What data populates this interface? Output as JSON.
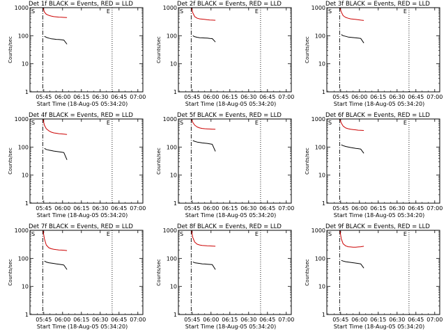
{
  "figure": {
    "colors": {
      "events": "#000000",
      "lld": "#cc0000",
      "axes": "#000000"
    }
  },
  "chart_data": [
    {
      "type": "line",
      "title": "Det 1f BLACK = Events, RED = LLD",
      "xlabel": "Start Time (18-Aug-05 05:34:20)",
      "ylabel": "Counts/sec",
      "x_tick_labels": [
        "05:45",
        "06:00",
        "06:15",
        "06:30",
        "06:45",
        "07:00"
      ],
      "y_tick_labels": [
        "1",
        "10",
        "100",
        "1000"
      ],
      "yscale": "log",
      "ylim": [
        1,
        1000
      ],
      "xlim_minutes": [
        0,
        90
      ],
      "grid": false,
      "s_marker_label": "S",
      "e_marker_label": "E",
      "s_marker_min": 10.2,
      "e_marker_min": 65.5,
      "series": [
        {
          "name": "Events",
          "color": "#000000",
          "x_min": [
            11.5,
            13,
            15,
            17,
            19,
            21,
            23,
            25,
            27,
            29.5
          ],
          "y": [
            95,
            88,
            82,
            78,
            76,
            74,
            73,
            72,
            70,
            50
          ]
        },
        {
          "name": "LLD",
          "color": "#cc0000",
          "x_min": [
            10.5,
            11.5,
            13,
            15,
            17,
            19,
            21,
            23,
            25,
            27,
            29.5
          ],
          "y": [
            950,
            700,
            580,
            530,
            500,
            480,
            470,
            460,
            455,
            450,
            445
          ]
        }
      ]
    },
    {
      "type": "line",
      "title": "Det 2f BLACK = Events, RED = LLD",
      "xlabel": "Start Time (18-Aug-05 05:34:20)",
      "ylabel": "Counts/sec",
      "x_tick_labels": [
        "05:45",
        "06:00",
        "06:15",
        "06:30",
        "06:45",
        "07:00"
      ],
      "y_tick_labels": [
        "1",
        "10",
        "100",
        "1000"
      ],
      "yscale": "log",
      "ylim": [
        1,
        1000
      ],
      "xlim_minutes": [
        0,
        90
      ],
      "grid": false,
      "s_marker_label": "S",
      "e_marker_label": "E",
      "s_marker_min": 10.2,
      "e_marker_min": 65.5,
      "series": [
        {
          "name": "Events",
          "color": "#000000",
          "x_min": [
            11.5,
            13,
            15,
            17,
            19,
            21,
            23,
            25,
            27,
            29.5
          ],
          "y": [
            100,
            92,
            88,
            85,
            84,
            83,
            82,
            80,
            79,
            60
          ]
        },
        {
          "name": "LLD",
          "color": "#cc0000",
          "x_min": [
            10.5,
            11.5,
            13,
            15,
            17,
            19,
            21,
            23,
            25,
            27,
            29.5
          ],
          "y": [
            950,
            650,
            480,
            420,
            400,
            390,
            380,
            370,
            365,
            360,
            355
          ]
        }
      ]
    },
    {
      "type": "line",
      "title": "Det 3f BLACK = Events, RED = LLD",
      "xlabel": "Start Time (18-Aug-05 05:34:20)",
      "ylabel": "Counts/sec",
      "x_tick_labels": [
        "05:45",
        "06:00",
        "06:15",
        "06:30",
        "06:45",
        "07:00"
      ],
      "y_tick_labels": [
        "1",
        "10",
        "100",
        "1000"
      ],
      "yscale": "log",
      "ylim": [
        1,
        1000
      ],
      "xlim_minutes": [
        0,
        90
      ],
      "grid": false,
      "s_marker_label": "S",
      "e_marker_label": "E",
      "s_marker_min": 10.2,
      "e_marker_min": 65.5,
      "series": [
        {
          "name": "Events",
          "color": "#000000",
          "x_min": [
            11.5,
            13,
            15,
            17,
            19,
            21,
            23,
            25,
            27,
            29.5
          ],
          "y": [
            110,
            100,
            95,
            90,
            88,
            86,
            84,
            82,
            80,
            55
          ]
        },
        {
          "name": "LLD",
          "color": "#cc0000",
          "x_min": [
            10.5,
            11.5,
            13,
            15,
            17,
            19,
            21,
            23,
            25,
            27,
            29.5
          ],
          "y": [
            950,
            700,
            520,
            450,
            420,
            400,
            390,
            380,
            370,
            360,
            350
          ]
        }
      ]
    },
    {
      "type": "line",
      "title": "Det 4f BLACK = Events, RED = LLD",
      "xlabel": "Start Time (18-Aug-05 05:34:20)",
      "ylabel": "Counts/sec",
      "x_tick_labels": [
        "05:45",
        "06:00",
        "06:15",
        "06:30",
        "06:45",
        "07:00"
      ],
      "y_tick_labels": [
        "1",
        "10",
        "100",
        "1000"
      ],
      "yscale": "log",
      "ylim": [
        1,
        1000
      ],
      "xlim_minutes": [
        0,
        90
      ],
      "grid": false,
      "s_marker_label": "S",
      "e_marker_label": "E",
      "s_marker_min": 10.2,
      "e_marker_min": 65.5,
      "series": [
        {
          "name": "Events",
          "color": "#000000",
          "x_min": [
            11.5,
            13,
            15,
            17,
            19,
            21,
            23,
            25,
            27,
            29.5
          ],
          "y": [
            90,
            82,
            78,
            75,
            72,
            70,
            68,
            66,
            64,
            35
          ]
        },
        {
          "name": "LLD",
          "color": "#cc0000",
          "x_min": [
            10.5,
            11.5,
            13,
            15,
            17,
            19,
            21,
            23,
            25,
            27,
            29.5
          ],
          "y": [
            950,
            600,
            450,
            380,
            340,
            320,
            310,
            300,
            295,
            290,
            280
          ]
        }
      ]
    },
    {
      "type": "line",
      "title": "Det 5f BLACK = Events, RED = LLD",
      "xlabel": "Start Time (18-Aug-05 05:34:20)",
      "ylabel": "Counts/sec",
      "x_tick_labels": [
        "05:45",
        "06:00",
        "06:15",
        "06:30",
        "06:45",
        "07:00"
      ],
      "y_tick_labels": [
        "1",
        "10",
        "100",
        "1000"
      ],
      "yscale": "log",
      "ylim": [
        1,
        1000
      ],
      "xlim_minutes": [
        0,
        90
      ],
      "grid": false,
      "s_marker_label": "S",
      "e_marker_label": "E",
      "s_marker_min": 10.2,
      "e_marker_min": 65.5,
      "series": [
        {
          "name": "Events",
          "color": "#000000",
          "x_min": [
            11.5,
            13,
            15,
            17,
            19,
            21,
            23,
            25,
            27,
            29.5
          ],
          "y": [
            170,
            160,
            150,
            145,
            140,
            138,
            135,
            130,
            125,
            70
          ]
        },
        {
          "name": "LLD",
          "color": "#cc0000",
          "x_min": [
            10.5,
            11.5,
            13,
            15,
            17,
            19,
            21,
            23,
            25,
            27,
            29.5
          ],
          "y": [
            950,
            750,
            600,
            520,
            480,
            460,
            450,
            445,
            440,
            435,
            430
          ]
        }
      ]
    },
    {
      "type": "line",
      "title": "Det 6f BLACK = Events, RED = LLD",
      "xlabel": "Start Time (18-Aug-05 05:34:20)",
      "ylabel": "Counts/sec",
      "x_tick_labels": [
        "05:45",
        "06:00",
        "06:15",
        "06:30",
        "06:45",
        "07:00"
      ],
      "y_tick_labels": [
        "1",
        "10",
        "100",
        "1000"
      ],
      "yscale": "log",
      "ylim": [
        1,
        1000
      ],
      "xlim_minutes": [
        0,
        90
      ],
      "grid": false,
      "s_marker_label": "S",
      "e_marker_label": "E",
      "s_marker_min": 10.2,
      "e_marker_min": 65.5,
      "series": [
        {
          "name": "Events",
          "color": "#000000",
          "x_min": [
            11.5,
            13,
            15,
            17,
            19,
            21,
            23,
            25,
            27,
            29.5
          ],
          "y": [
            120,
            112,
            105,
            100,
            96,
            93,
            90,
            88,
            85,
            60
          ]
        },
        {
          "name": "LLD",
          "color": "#cc0000",
          "x_min": [
            10.5,
            11.5,
            13,
            15,
            17,
            19,
            21,
            23,
            25,
            27,
            29.5
          ],
          "y": [
            950,
            720,
            560,
            480,
            450,
            430,
            420,
            410,
            400,
            395,
            390
          ]
        }
      ]
    },
    {
      "type": "line",
      "title": "Det 7f BLACK = Events, RED = LLD",
      "xlabel": "Start Time (18-Aug-05 05:34:20)",
      "ylabel": "Counts/sec",
      "x_tick_labels": [
        "05:45",
        "06:00",
        "06:15",
        "06:30",
        "06:45",
        "07:00"
      ],
      "y_tick_labels": [
        "1",
        "10",
        "100",
        "1000"
      ],
      "yscale": "log",
      "ylim": [
        1,
        1000
      ],
      "xlim_minutes": [
        0,
        90
      ],
      "grid": false,
      "s_marker_label": "S",
      "e_marker_label": "E",
      "s_marker_min": 10.2,
      "e_marker_min": 65.5,
      "series": [
        {
          "name": "Events",
          "color": "#000000",
          "x_min": [
            11.5,
            13,
            15,
            17,
            19,
            21,
            23,
            25,
            27,
            29.5
          ],
          "y": [
            80,
            74,
            70,
            68,
            66,
            64,
            62,
            60,
            58,
            40
          ]
        },
        {
          "name": "LLD",
          "color": "#cc0000",
          "x_min": [
            10.5,
            11.5,
            13,
            15,
            17,
            19,
            21,
            23,
            25,
            27,
            29.5
          ],
          "y": [
            950,
            500,
            300,
            240,
            220,
            210,
            205,
            200,
            198,
            195,
            190
          ]
        }
      ]
    },
    {
      "type": "line",
      "title": "Det 8f BLACK = Events, RED = LLD",
      "xlabel": "Start Time (18-Aug-05 05:34:20)",
      "ylabel": "Counts/sec",
      "x_tick_labels": [
        "05:45",
        "06:00",
        "06:15",
        "06:30",
        "06:45",
        "07:00"
      ],
      "y_tick_labels": [
        "1",
        "10",
        "100",
        "1000"
      ],
      "yscale": "log",
      "ylim": [
        1,
        1000
      ],
      "xlim_minutes": [
        0,
        90
      ],
      "grid": false,
      "s_marker_label": "S",
      "e_marker_label": "E",
      "s_marker_min": 10.2,
      "e_marker_min": 65.5,
      "series": [
        {
          "name": "Events",
          "color": "#000000",
          "x_min": [
            11.5,
            13,
            15,
            17,
            19,
            21,
            23,
            25,
            27,
            29.5
          ],
          "y": [
            75,
            70,
            68,
            66,
            64,
            63,
            62,
            61,
            60,
            40
          ]
        },
        {
          "name": "LLD",
          "color": "#cc0000",
          "x_min": [
            10.5,
            11.5,
            13,
            15,
            17,
            19,
            21,
            23,
            25,
            27,
            29.5
          ],
          "y": [
            950,
            550,
            380,
            320,
            300,
            290,
            285,
            280,
            278,
            275,
            270
          ]
        }
      ]
    },
    {
      "type": "line",
      "title": "Det 9f BLACK = Events, RED = LLD",
      "xlabel": "Start Time (18-Aug-05 05:34:20)",
      "ylabel": "Counts/sec",
      "x_tick_labels": [
        "05:45",
        "06:00",
        "06:15",
        "06:30",
        "06:45",
        "07:00"
      ],
      "y_tick_labels": [
        "1",
        "10",
        "100",
        "1000"
      ],
      "yscale": "log",
      "ylim": [
        1,
        1000
      ],
      "xlim_minutes": [
        0,
        90
      ],
      "grid": false,
      "s_marker_label": "S",
      "e_marker_label": "E",
      "s_marker_min": 10.2,
      "e_marker_min": 65.5,
      "series": [
        {
          "name": "Events",
          "color": "#000000",
          "x_min": [
            11.5,
            13,
            15,
            17,
            19,
            21,
            23,
            25,
            27,
            29.5
          ],
          "y": [
            85,
            80,
            76,
            74,
            72,
            70,
            68,
            66,
            64,
            45
          ]
        },
        {
          "name": "LLD",
          "color": "#cc0000",
          "x_min": [
            10.5,
            11.5,
            13,
            15,
            17,
            19,
            21,
            23,
            25,
            27,
            29.5
          ],
          "y": [
            950,
            500,
            330,
            280,
            260,
            255,
            250,
            250,
            255,
            260,
            270
          ]
        }
      ]
    }
  ]
}
